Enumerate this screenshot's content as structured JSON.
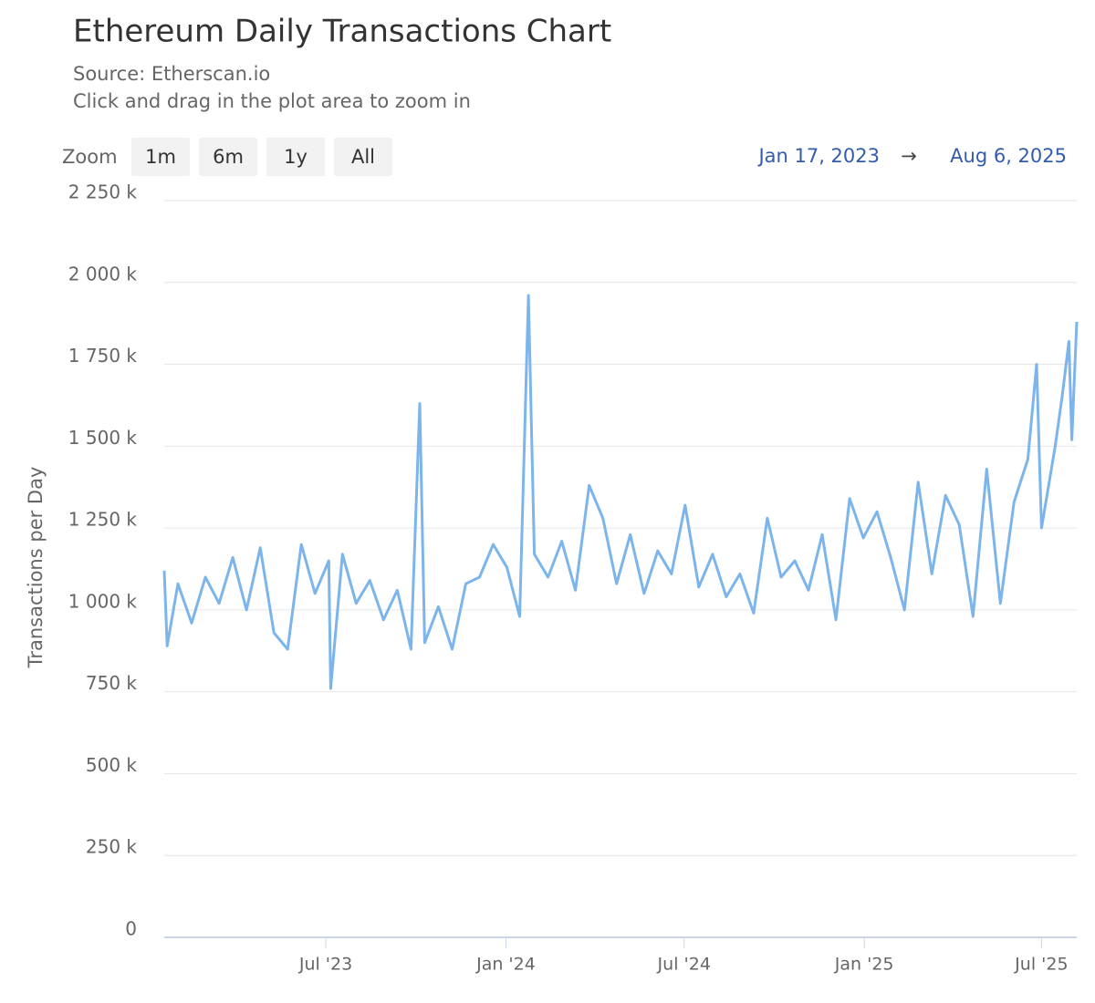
{
  "chart_data": {
    "type": "line",
    "title": "Ethereum Daily Transactions Chart",
    "subtitle": [
      "Source: Etherscan.io",
      "Click and drag in the plot area to zoom in"
    ],
    "range_selector": {
      "label": "Zoom",
      "buttons": [
        "1m",
        "6m",
        "1y",
        "All"
      ],
      "from": "Jan 17, 2023",
      "separator": "→",
      "to": "Aug 6, 2025"
    },
    "y_label": "Transactions per Day",
    "color": "#7cb5ec",
    "grid": true,
    "xlim": [
      "2023-01-17",
      "2025-08-06"
    ],
    "xticks": [
      {
        "value": "2023-07-01",
        "label": "Jul '23"
      },
      {
        "value": "2024-01-01",
        "label": "Jan '24"
      },
      {
        "value": "2024-07-01",
        "label": "Jul '24"
      },
      {
        "value": "2025-01-01",
        "label": "Jan '25"
      },
      {
        "value": "2025-07-01",
        "label": "Jul '25"
      }
    ],
    "ylim": [
      0,
      2250000
    ],
    "yticks": [
      0,
      {
        "value": 250000,
        "label": "250 k"
      },
      {
        "value": 500000,
        "label": "500 k"
      },
      {
        "value": 750000,
        "label": "750 k"
      },
      {
        "value": 1000000,
        "label": "1 000 k"
      },
      {
        "value": 1250000,
        "label": "1 250 k"
      },
      {
        "value": 1500000,
        "label": "1 500 k"
      },
      {
        "value": 1750000,
        "label": "1 750 k"
      },
      {
        "value": 2000000,
        "label": "2 000 k"
      },
      {
        "value": 2250000,
        "label": "2 250 k"
      }
    ],
    "x": [
      "2023-01-17",
      "2023-01-20",
      "2023-01-31",
      "2023-02-14",
      "2023-02-28",
      "2023-03-14",
      "2023-03-28",
      "2023-04-11",
      "2023-04-25",
      "2023-05-09",
      "2023-05-23",
      "2023-06-06",
      "2023-06-20",
      "2023-07-04",
      "2023-07-06",
      "2023-07-18",
      "2023-08-01",
      "2023-08-15",
      "2023-08-29",
      "2023-09-12",
      "2023-09-26",
      "2023-10-05",
      "2023-10-10",
      "2023-10-24",
      "2023-11-07",
      "2023-11-21",
      "2023-12-05",
      "2023-12-19",
      "2024-01-02",
      "2024-01-15",
      "2024-01-24",
      "2024-01-30",
      "2024-02-13",
      "2024-02-27",
      "2024-03-12",
      "2024-03-26",
      "2024-04-09",
      "2024-04-23",
      "2024-05-07",
      "2024-05-21",
      "2024-06-04",
      "2024-06-18",
      "2024-07-02",
      "2024-07-16",
      "2024-07-30",
      "2024-08-13",
      "2024-08-27",
      "2024-09-10",
      "2024-09-24",
      "2024-10-08",
      "2024-10-22",
      "2024-11-05",
      "2024-11-19",
      "2024-12-03",
      "2024-12-17",
      "2024-12-31",
      "2025-01-14",
      "2025-01-28",
      "2025-02-11",
      "2025-02-25",
      "2025-03-11",
      "2025-03-25",
      "2025-04-08",
      "2025-04-22",
      "2025-05-06",
      "2025-05-20",
      "2025-06-03",
      "2025-06-17",
      "2025-06-26",
      "2025-07-01",
      "2025-07-15",
      "2025-07-22",
      "2025-07-29",
      "2025-08-01",
      "2025-08-06"
    ],
    "values": [
      1120000,
      890000,
      1080000,
      960000,
      1100000,
      1020000,
      1160000,
      1000000,
      1190000,
      930000,
      880000,
      1200000,
      1050000,
      1150000,
      760000,
      1170000,
      1020000,
      1090000,
      970000,
      1060000,
      880000,
      1630000,
      900000,
      1010000,
      880000,
      1080000,
      1100000,
      1200000,
      1130000,
      980000,
      1960000,
      1170000,
      1100000,
      1210000,
      1060000,
      1380000,
      1280000,
      1080000,
      1230000,
      1050000,
      1180000,
      1110000,
      1320000,
      1070000,
      1170000,
      1040000,
      1110000,
      990000,
      1280000,
      1100000,
      1150000,
      1060000,
      1230000,
      970000,
      1340000,
      1220000,
      1300000,
      1160000,
      1000000,
      1390000,
      1110000,
      1350000,
      1260000,
      980000,
      1430000,
      1020000,
      1330000,
      1460000,
      1750000,
      1250000,
      1500000,
      1650000,
      1820000,
      1520000,
      1880000
    ]
  }
}
